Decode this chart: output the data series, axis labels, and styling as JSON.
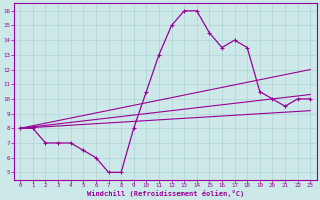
{
  "xlabel": "Windchill (Refroidissement éolien,°C)",
  "xlim": [
    -0.5,
    23.5
  ],
  "ylim": [
    4.5,
    16.5
  ],
  "xticks": [
    0,
    1,
    2,
    3,
    4,
    5,
    6,
    7,
    8,
    9,
    10,
    11,
    12,
    13,
    14,
    15,
    16,
    17,
    18,
    19,
    20,
    21,
    22,
    23
  ],
  "yticks": [
    5,
    6,
    7,
    8,
    9,
    10,
    11,
    12,
    13,
    14,
    15,
    16
  ],
  "bg_color": "#cde8e8",
  "line_color": "#990099",
  "grid_color": "#b0d4d4",
  "main_y": [
    8,
    8,
    7,
    7,
    7,
    6.5,
    6,
    5,
    5,
    8,
    10.5,
    13,
    15,
    16,
    16,
    14.5,
    13.5,
    14,
    13.5,
    10.5,
    10,
    9.5,
    10,
    10
  ],
  "trend1_x": [
    0,
    23
  ],
  "trend1_y": [
    8.0,
    12.0
  ],
  "trend2_x": [
    0,
    23
  ],
  "trend2_y": [
    8.0,
    10.3
  ],
  "trend3_x": [
    0,
    23
  ],
  "trend3_y": [
    8.0,
    9.2
  ]
}
